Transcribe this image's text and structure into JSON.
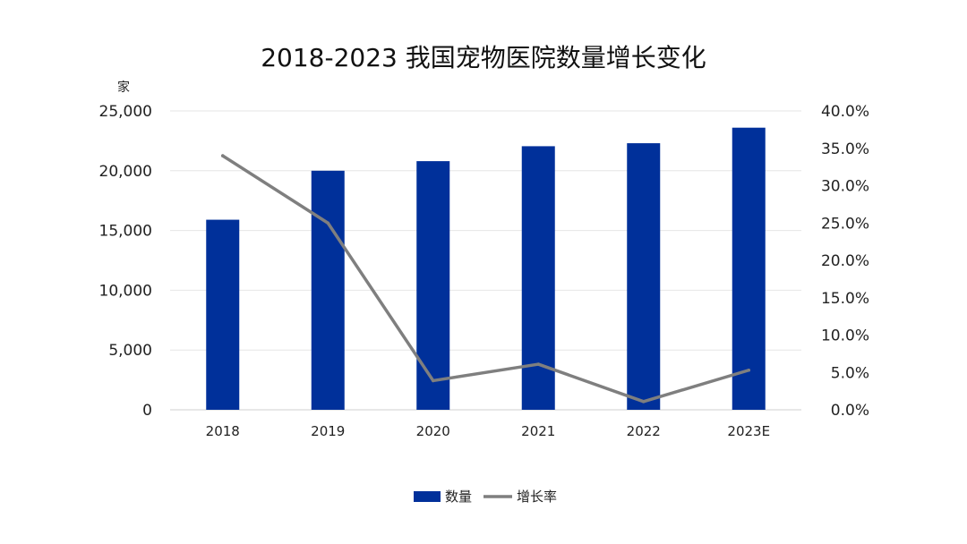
{
  "chart_data": {
    "type": "bar+line",
    "title": "2018-2023 我国宠物医院数量增长变化",
    "y_left_unit": "家",
    "categories": [
      "2018",
      "2019",
      "2020",
      "2021",
      "2022",
      "2023E"
    ],
    "y_left_ticks": [
      "0",
      "5,000",
      "10,000",
      "15,000",
      "20,000",
      "25,000"
    ],
    "y_right_ticks": [
      "0.0%",
      "5.0%",
      "10.0%",
      "15.0%",
      "20.0%",
      "25.0%",
      "30.0%",
      "35.0%",
      "40.0%"
    ],
    "ylim_left": [
      0,
      25000
    ],
    "ylim_right": [
      0,
      40
    ],
    "grid": true,
    "legend_position": "bottom-center",
    "series": [
      {
        "name": "数量",
        "type": "bar",
        "axis": "left",
        "color": "#00309a",
        "values": [
          15900,
          20000,
          20800,
          22050,
          22300,
          23600
        ]
      },
      {
        "name": "增长率",
        "type": "line",
        "axis": "right",
        "color": "#7f7f7f",
        "values": [
          34.0,
          25.0,
          3.9,
          6.1,
          1.1,
          5.3
        ]
      }
    ]
  }
}
